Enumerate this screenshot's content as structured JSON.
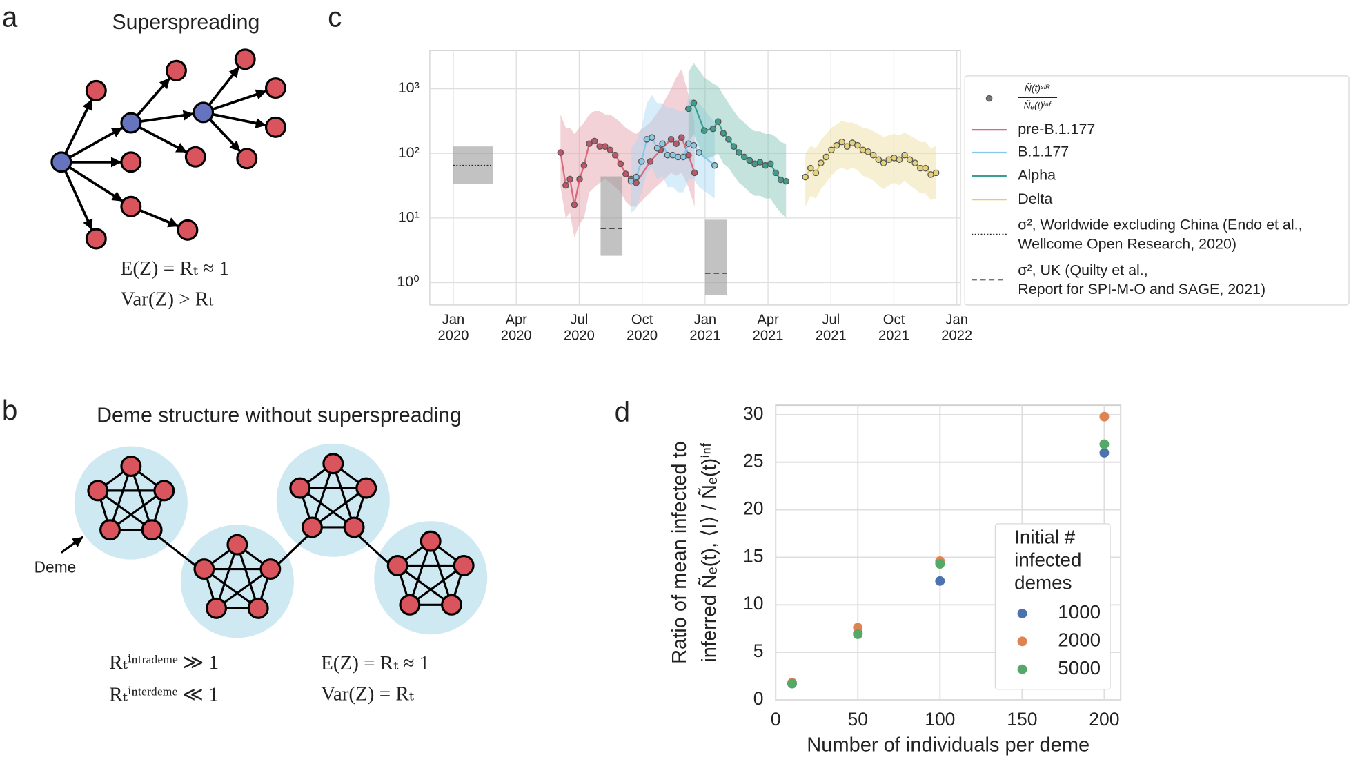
{
  "panel_labels": [
    "a",
    "b",
    "c",
    "d"
  ],
  "panel_a": {
    "title": "Superspreading",
    "equations": [
      "E(Z) = Rₜ ≈ 1",
      "Var(Z) > Rₜ"
    ]
  },
  "panel_b": {
    "title": "Deme structure without superspreading",
    "deme_label": "Deme",
    "equations": [
      "Rₜⁱⁿᵗʳᵃᵈᵉᵐᵉ ≫ 1",
      "Rₜⁱⁿᵗᵉʳᵈᵉᵐᵉ ≪ 1",
      "E(Z) = Rₜ ≈ 1",
      "Var(Z) = Rₜ"
    ]
  },
  "chart_data": [
    {
      "type": "line",
      "log_y": true,
      "grid": true,
      "band_opacity": 0.45,
      "marker_edge_color": "#555555",
      "xlim": [
        -1.12,
        24.17
      ],
      "ylim": [
        0.45,
        3900
      ],
      "xticks": [
        {
          "value": 0,
          "label": [
            "Jan",
            "2020"
          ]
        },
        {
          "value": 3,
          "label": [
            "Apr",
            "2020"
          ]
        },
        {
          "value": 6,
          "label": [
            "Jul",
            "2020"
          ]
        },
        {
          "value": 9,
          "label": [
            "Oct",
            "2020"
          ]
        },
        {
          "value": 12,
          "label": [
            "Jan",
            "2021"
          ]
        },
        {
          "value": 15,
          "label": [
            "Apr",
            "2021"
          ]
        },
        {
          "value": 18,
          "label": [
            "Jul",
            "2021"
          ]
        },
        {
          "value": 21,
          "label": [
            "Oct",
            "2021"
          ]
        },
        {
          "value": 24,
          "label": [
            "Jan",
            "2022"
          ]
        }
      ],
      "yticks": [
        {
          "value": 1,
          "label": "10⁰"
        },
        {
          "value": 10,
          "label": "10¹"
        },
        {
          "value": 100,
          "label": "10²"
        },
        {
          "value": 1000,
          "label": "10³"
        }
      ],
      "legend_marker_label": {
        "numerator": "Ñ(t)ˢᴵᴿ",
        "denominator": "Ñₑ(t)ⁱⁿᶠ"
      },
      "series": [
        {
          "name": "pre-B.1.177",
          "color": "#d9687d",
          "band_color": "#e29aa7",
          "marker_color": "#c0566a",
          "x": [
            5.11,
            5.36,
            5.56,
            5.77,
            6.02,
            6.23,
            6.48,
            6.73,
            6.98,
            7.23,
            7.48,
            7.72,
            7.97,
            8.22,
            8.47,
            8.72,
            9.39,
            9.88,
            10.38,
            10.63,
            10.88,
            11.21,
            11.5
          ],
          "values": [
            103,
            32,
            40,
            16,
            40,
            65,
            141,
            155,
            128,
            128,
            113,
            94,
            69,
            48,
            40,
            35,
            75,
            113,
            165,
            141,
            176,
            94,
            50
          ],
          "lower": [
            30,
            10,
            12,
            5,
            8,
            10,
            25,
            30,
            35,
            40,
            35,
            30,
            25,
            18,
            15,
            15,
            25,
            35,
            50,
            45,
            50,
            30,
            15
          ],
          "upper": [
            400,
            250,
            250,
            200,
            250,
            300,
            400,
            450,
            450,
            400,
            400,
            350,
            300,
            250,
            220,
            200,
            300,
            500,
            1000,
            1500,
            2000,
            800,
            300
          ]
        },
        {
          "name": "B.1.177",
          "color": "#86c8ea",
          "band_color": "#a6d6f2",
          "marker_color": "#8cc8e0",
          "x": [
            8.47,
            8.72,
            8.97,
            9.22,
            9.47,
            9.72,
            9.97,
            10.21,
            10.46,
            10.71,
            10.96,
            11.21,
            11.46,
            11.71,
            12.46
          ],
          "values": [
            37,
            43,
            75,
            165,
            176,
            120,
            141,
            94,
            94,
            88,
            88,
            141,
            133,
            103,
            65
          ],
          "lower": [
            12,
            14,
            25,
            50,
            60,
            40,
            45,
            30,
            30,
            25,
            25,
            40,
            40,
            30,
            20
          ],
          "upper": [
            120,
            150,
            250,
            600,
            800,
            600,
            600,
            500,
            500,
            450,
            450,
            700,
            700,
            600,
            300
          ]
        },
        {
          "name": "Alpha",
          "color": "#3a9e90",
          "band_color": "#7cc0b3",
          "marker_color": "#3e9e8e",
          "x": [
            11.21,
            11.46,
            11.96,
            12.38,
            12.62,
            12.87,
            13.12,
            13.37,
            13.62,
            13.87,
            14.12,
            14.37,
            14.62,
            14.87,
            15.12,
            15.37,
            15.61,
            15.86
          ],
          "values": [
            490,
            600,
            225,
            240,
            310,
            205,
            165,
            128,
            103,
            88,
            78,
            69,
            73,
            65,
            69,
            50,
            39,
            37
          ],
          "lower": [
            150,
            200,
            80,
            90,
            100,
            70,
            60,
            45,
            35,
            30,
            25,
            22,
            22,
            20,
            20,
            15,
            12,
            10
          ],
          "upper": [
            1800,
            2500,
            1500,
            1200,
            1100,
            800,
            600,
            450,
            350,
            300,
            250,
            220,
            220,
            200,
            200,
            180,
            150,
            140
          ]
        },
        {
          "name": "Delta",
          "color": "#e3cc6e",
          "band_color": "#eadc98",
          "marker_color": "#e5d27c",
          "x": [
            16.78,
            17.03,
            17.28,
            17.52,
            17.77,
            18.02,
            18.27,
            18.52,
            18.77,
            19.02,
            19.27,
            19.52,
            19.77,
            20.02,
            20.27,
            20.51,
            20.76,
            21.01,
            21.26,
            21.51,
            21.76,
            22.01,
            22.26,
            22.51,
            22.76,
            23.01
          ],
          "values": [
            43,
            59,
            50,
            71,
            88,
            113,
            133,
            150,
            128,
            145,
            133,
            113,
            106,
            94,
            80,
            71,
            80,
            85,
            80,
            94,
            80,
            71,
            59,
            59,
            47,
            50
          ],
          "lower": [
            15,
            22,
            20,
            28,
            35,
            45,
            55,
            60,
            55,
            60,
            55,
            45,
            42,
            38,
            32,
            28,
            32,
            35,
            32,
            38,
            32,
            28,
            24,
            24,
            19,
            20
          ],
          "upper": [
            100,
            130,
            120,
            160,
            200,
            250,
            280,
            320,
            300,
            300,
            280,
            250,
            240,
            220,
            200,
            180,
            190,
            200,
            190,
            210,
            190,
            170,
            150,
            150,
            120,
            130
          ]
        }
      ],
      "reference_ranges": [
        {
          "name": [
            "σ², Worldwide excluding China (Endo et al.,",
            "Wellcome Open Research, 2020)"
          ],
          "linestyle": "dotted",
          "color": "#999999",
          "boxes": [
            {
              "x": [
                0,
                1.9
              ],
              "low": 34,
              "high": 128,
              "value": 65
            }
          ]
        },
        {
          "name": [
            "σ², UK (Quilty et al.,",
            "Report for SPI-M-O and SAGE, 2021)"
          ],
          "linestyle": "dashed",
          "color": "#999999",
          "boxes": [
            {
              "x": [
                7.02,
                8.06
              ],
              "low": 2.6,
              "high": 44,
              "value": 6.9
            },
            {
              "x": [
                12.0,
                13.04
              ],
              "low": 0.65,
              "high": 9.4,
              "value": 1.4
            }
          ]
        }
      ]
    },
    {
      "type": "scatter",
      "grid": true,
      "xlabel": "Number of individuals per deme",
      "ylabel": [
        "Ratio of mean infected to",
        "inferred Ñₑ(t), ⟨I⟩ / Ñₑ(t)ⁱⁿᶠ"
      ],
      "xlim": [
        0,
        210
      ],
      "ylim": [
        0,
        31
      ],
      "xticks": [
        0,
        50,
        100,
        150,
        200
      ],
      "yticks": [
        0,
        5,
        10,
        15,
        20,
        25,
        30
      ],
      "legend_title": [
        "Initial #",
        "infected",
        "demes"
      ],
      "legend_loc": "lower right",
      "series": [
        {
          "name": "1000",
          "color": "#4c72b0",
          "x": [
            10,
            50,
            100,
            200
          ],
          "values": [
            1.7,
            7.0,
            12.5,
            26.0
          ]
        },
        {
          "name": "2000",
          "color": "#dd8452",
          "x": [
            10,
            50,
            100,
            200
          ],
          "values": [
            1.8,
            7.6,
            14.6,
            29.8
          ]
        },
        {
          "name": "5000",
          "color": "#55a868",
          "x": [
            10,
            50,
            100,
            200
          ],
          "values": [
            1.7,
            6.9,
            14.3,
            26.9
          ]
        }
      ]
    }
  ]
}
